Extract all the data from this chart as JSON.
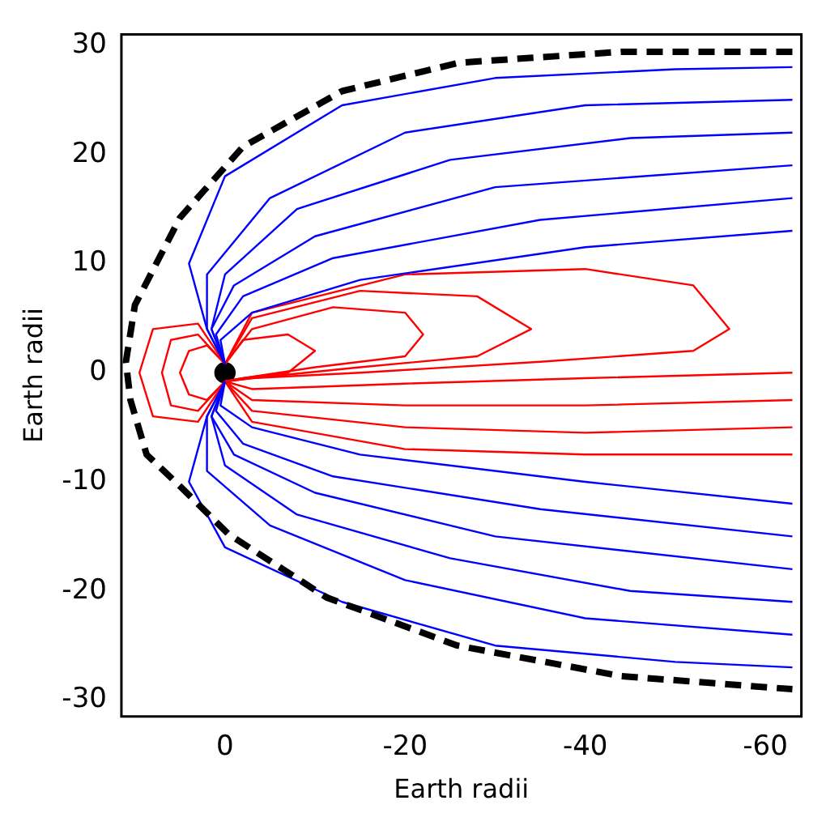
{
  "chart_data": {
    "type": "line",
    "xlabel": "Earth radii",
    "ylabel": "Earth radii",
    "xlim": [
      11.5,
      -64
    ],
    "ylim": [
      -31.5,
      31
    ],
    "xticks": [
      0,
      -20,
      -40,
      -60
    ],
    "yticks": [
      -30,
      -20,
      -10,
      0,
      10,
      20,
      30
    ],
    "grid": false,
    "legend": false,
    "marker": "none",
    "series": [
      {
        "color": "#000000",
        "line_style": "dashed",
        "x": [
          -63,
          -44,
          -26,
          -13,
          -2,
          5,
          10,
          11,
          10.5,
          8.7,
          5,
          -0.4,
          -11.3,
          -25.8,
          -44,
          -63
        ],
        "values": [
          29.4,
          29.4,
          28.4,
          25.8,
          20.7,
          14.2,
          6.2,
          1,
          -2.5,
          -7.5,
          -10.4,
          -14.8,
          -20.6,
          -25,
          -27.8,
          -29
        ]
      },
      {
        "color": "#0000ff",
        "x": [
          0,
          2,
          4,
          0,
          -13,
          -30,
          -50,
          -63
        ],
        "values": [
          0.8,
          4,
          10,
          18,
          24.5,
          27,
          27.8,
          28
        ]
      },
      {
        "color": "#0000ff",
        "x": [
          0,
          2,
          2,
          -5,
          -20,
          -40,
          -63
        ],
        "values": [
          0.8,
          4,
          9,
          16,
          22,
          24.5,
          25
        ]
      },
      {
        "color": "#0000ff",
        "x": [
          0,
          1.5,
          0,
          -8,
          -25,
          -45,
          -63
        ],
        "values": [
          0.8,
          4,
          9,
          15,
          19.5,
          21.5,
          22
        ]
      },
      {
        "color": "#0000ff",
        "x": [
          0,
          1.5,
          -1,
          -10,
          -30,
          -63
        ],
        "values": [
          0.8,
          4,
          8,
          12.5,
          17,
          19
        ]
      },
      {
        "color": "#0000ff",
        "x": [
          0,
          1,
          -2,
          -12,
          -35,
          -63
        ],
        "values": [
          0.8,
          3.5,
          7,
          10.5,
          14,
          16
        ]
      },
      {
        "color": "#0000ff",
        "x": [
          0,
          0.5,
          -3,
          -15,
          -40,
          -63
        ],
        "values": [
          0.8,
          3,
          5.5,
          8.5,
          11.5,
          13
        ]
      },
      {
        "color": "#0000ff",
        "x": [
          0,
          2,
          4,
          0,
          -13,
          -30,
          -50,
          -63
        ],
        "values": [
          -0.8,
          -4,
          -10,
          -16,
          -21,
          -25,
          -26.5,
          -27
        ]
      },
      {
        "color": "#0000ff",
        "x": [
          0,
          2,
          2,
          -5,
          -20,
          -40,
          -63
        ],
        "values": [
          -0.8,
          -4,
          -9,
          -14,
          -19,
          -22.5,
          -24
        ]
      },
      {
        "color": "#0000ff",
        "x": [
          0,
          1.5,
          0,
          -8,
          -25,
          -45,
          -63
        ],
        "values": [
          -0.8,
          -4,
          -8.5,
          -13,
          -17,
          -20,
          -21
        ]
      },
      {
        "color": "#0000ff",
        "x": [
          0,
          1.5,
          -1,
          -10,
          -30,
          -63
        ],
        "values": [
          -0.8,
          -4,
          -7.5,
          -11,
          -15,
          -18
        ]
      },
      {
        "color": "#0000ff",
        "x": [
          0,
          1,
          -2,
          -12,
          -35,
          -63
        ],
        "values": [
          -0.8,
          -3.5,
          -6.5,
          -9.5,
          -12.5,
          -15
        ]
      },
      {
        "color": "#0000ff",
        "x": [
          0,
          0.5,
          -3,
          -15,
          -40,
          -63
        ],
        "values": [
          -0.8,
          -3,
          -5,
          -7.5,
          -10,
          -12
        ]
      },
      {
        "color": "#ff0000",
        "x": [
          0,
          2,
          4,
          5,
          4,
          2,
          0
        ],
        "values": [
          0.8,
          2.5,
          2,
          0,
          -2,
          -2.5,
          -0.8
        ]
      },
      {
        "color": "#ff0000",
        "x": [
          0,
          3,
          6,
          7,
          6,
          3,
          0
        ],
        "values": [
          0.8,
          3.5,
          3,
          0,
          -3,
          -3.5,
          -0.8
        ]
      },
      {
        "color": "#ff0000",
        "x": [
          0,
          3,
          8,
          9.5,
          8,
          3,
          0
        ],
        "values": [
          0.8,
          4.5,
          4,
          0,
          -4,
          -4.5,
          -0.8
        ]
      },
      {
        "color": "#ff0000",
        "x": [
          0,
          -2,
          -7,
          -10,
          -7,
          -2,
          0
        ],
        "values": [
          0.8,
          3,
          3.5,
          2,
          0,
          -0.5,
          -0.8
        ]
      },
      {
        "color": "#ff0000",
        "x": [
          0,
          -3,
          -12,
          -20,
          -22,
          -20,
          -10,
          -2,
          0
        ],
        "values": [
          0.8,
          4,
          6,
          5.5,
          3.5,
          1.5,
          0.5,
          -0.5,
          -0.8
        ]
      },
      {
        "color": "#ff0000",
        "x": [
          0,
          -3,
          -15,
          -28,
          -34,
          -28,
          -15,
          -3,
          0
        ],
        "values": [
          0.8,
          5,
          7.5,
          7,
          4,
          1.5,
          0.5,
          -0.5,
          -0.8
        ]
      },
      {
        "color": "#ff0000",
        "x": [
          0,
          -3,
          -20,
          -40,
          -52,
          -56,
          -52,
          -35,
          -15,
          -3,
          0
        ],
        "values": [
          0.8,
          5.5,
          9,
          9.5,
          8,
          4,
          2,
          1,
          0,
          -0.5,
          -0.8
        ]
      },
      {
        "color": "#ff0000",
        "x": [
          0,
          -3,
          -20,
          -40,
          -63
        ],
        "values": [
          -0.8,
          -1.5,
          -1,
          -0.5,
          0
        ]
      },
      {
        "color": "#ff0000",
        "x": [
          0,
          -3,
          -20,
          -40,
          -63
        ],
        "values": [
          -0.8,
          -2.5,
          -3,
          -3,
          -2.5
        ]
      },
      {
        "color": "#ff0000",
        "x": [
          0,
          -3,
          -20,
          -40,
          -63
        ],
        "values": [
          -0.8,
          -3.5,
          -5,
          -5.5,
          -5
        ]
      },
      {
        "color": "#ff0000",
        "x": [
          0,
          -3,
          -20,
          -40,
          -63
        ],
        "values": [
          -0.8,
          -4.5,
          -7,
          -7.5,
          -7.5
        ]
      },
      {
        "type": "scatter",
        "marker": "circle",
        "color": "#000000",
        "x": [
          0
        ],
        "values": [
          0
        ]
      }
    ]
  }
}
